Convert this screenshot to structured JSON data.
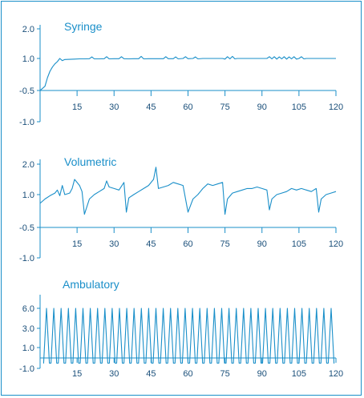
{
  "chart_data": [
    {
      "type": "line",
      "title": "Syringe",
      "xlabel": "",
      "ylabel": "",
      "xlim": [
        0,
        120
      ],
      "ylim": [
        -1.0,
        2.0
      ],
      "xticks": [
        "15",
        "30",
        "45",
        "60",
        "75",
        "90",
        "105",
        "120"
      ],
      "yticks": [
        "2.0",
        "1.0",
        "-0.5",
        "-1.0"
      ],
      "grid": false,
      "series": [
        {
          "x": [
            0,
            1,
            2,
            3,
            4,
            5,
            6,
            7,
            8,
            9,
            10,
            12,
            14,
            16,
            18,
            20,
            21,
            22,
            24,
            26,
            27,
            28,
            30,
            32,
            33,
            34,
            36,
            38,
            40,
            41,
            42,
            44,
            46,
            48,
            50,
            51,
            52,
            54,
            55,
            56,
            58,
            59,
            60,
            62,
            63,
            64,
            66,
            68,
            70,
            72,
            74,
            75,
            76,
            77,
            78,
            79,
            80,
            82,
            84,
            86,
            88,
            90,
            92,
            93,
            94,
            95,
            96,
            97,
            98,
            99,
            100,
            101,
            102,
            103,
            104,
            105,
            106,
            107,
            108,
            110,
            112,
            114,
            116,
            118,
            120
          ],
          "values": [
            -0.5,
            -0.4,
            -0.3,
            0.1,
            0.4,
            0.6,
            0.75,
            0.85,
            1.0,
            0.9,
            0.95,
            0.96,
            0.97,
            0.98,
            0.98,
            0.99,
            1.05,
            0.98,
            0.98,
            0.99,
            1.06,
            0.98,
            0.99,
            0.99,
            1.06,
            0.99,
            0.98,
            0.99,
            0.99,
            1.07,
            0.98,
            0.99,
            0.99,
            0.99,
            0.99,
            1.06,
            0.99,
            0.99,
            1.05,
            0.98,
            1.0,
            1.06,
            0.99,
            1.0,
            1.05,
            0.98,
            1.0,
            1.0,
            1.0,
            1.0,
            1.0,
            0.97,
            1.06,
            0.98,
            1.07,
            0.98,
            1.0,
            1.0,
            1.0,
            1.0,
            1.0,
            1.0,
            1.0,
            1.06,
            0.98,
            1.06,
            0.97,
            1.05,
            0.98,
            1.06,
            0.97,
            1.05,
            0.98,
            1.06,
            0.97,
            1.0,
            1.06,
            0.98,
            1.0,
            1.0,
            1.0,
            1.0,
            1.0,
            1.0,
            1.0
          ]
        }
      ]
    },
    {
      "type": "line",
      "title": "Volumetric",
      "xlabel": "",
      "ylabel": "",
      "xlim": [
        0,
        120
      ],
      "ylim": [
        -1.0,
        2.0
      ],
      "xticks": [
        "15",
        "30",
        "45",
        "60",
        "75",
        "90",
        "105",
        "120"
      ],
      "yticks": [
        "2.0",
        "1.0",
        "-0.5",
        "-1.0"
      ],
      "grid": false,
      "series": [
        {
          "x": [
            0,
            2,
            4,
            6,
            7,
            8,
            9,
            10,
            12,
            13,
            14,
            16,
            17,
            18,
            20,
            22,
            24,
            26,
            27,
            28,
            30,
            32,
            34,
            35,
            36,
            38,
            40,
            42,
            44,
            46,
            47,
            48,
            50,
            52,
            54,
            56,
            58,
            60,
            62,
            64,
            65,
            66,
            68,
            70,
            72,
            74,
            75,
            76,
            78,
            80,
            82,
            84,
            86,
            88,
            90,
            92,
            93,
            94,
            96,
            98,
            100,
            102,
            104,
            106,
            108,
            110,
            112,
            113,
            114,
            116,
            118,
            120
          ],
          "values": [
            0.6,
            0.8,
            0.95,
            1.05,
            1.15,
            0.95,
            1.3,
            1.0,
            1.05,
            1.2,
            1.5,
            1.3,
            1.1,
            0.1,
            0.8,
            1.0,
            1.1,
            1.2,
            1.45,
            1.25,
            1.2,
            1.15,
            1.4,
            0.2,
            0.85,
            1.0,
            1.1,
            1.2,
            1.3,
            1.5,
            1.9,
            1.2,
            1.25,
            1.3,
            1.4,
            1.35,
            1.3,
            0.2,
            0.8,
            1.0,
            1.1,
            1.2,
            1.35,
            1.3,
            1.35,
            1.4,
            0.1,
            0.8,
            1.05,
            1.1,
            1.15,
            1.2,
            1.2,
            1.25,
            1.2,
            1.15,
            0.3,
            0.8,
            1.0,
            1.05,
            1.1,
            1.2,
            1.15,
            1.2,
            1.15,
            1.1,
            1.2,
            0.2,
            0.8,
            1.0,
            1.05,
            1.1
          ]
        }
      ]
    },
    {
      "type": "line",
      "title": "Ambulatory",
      "xlabel": "",
      "ylabel": "",
      "xlim": [
        0,
        120
      ],
      "ylim": [
        -1.0,
        6.0
      ],
      "xticks": [
        "15",
        "30",
        "45",
        "60",
        "75",
        "90",
        "105",
        "120"
      ],
      "yticks": [
        "6.0",
        "3.0",
        "1.0",
        "-1.0"
      ],
      "grid": false,
      "series": [
        {
          "pattern": "periodic spikes",
          "period": 3,
          "peak": 6.0,
          "baseline": -0.5,
          "count": 40
        }
      ]
    }
  ],
  "colors": {
    "line": "#1a8fc9",
    "axis": "#1a8fc9",
    "frame": "#1a8fc9",
    "text": "#1a4f7a",
    "title": "#1a8fc9"
  }
}
